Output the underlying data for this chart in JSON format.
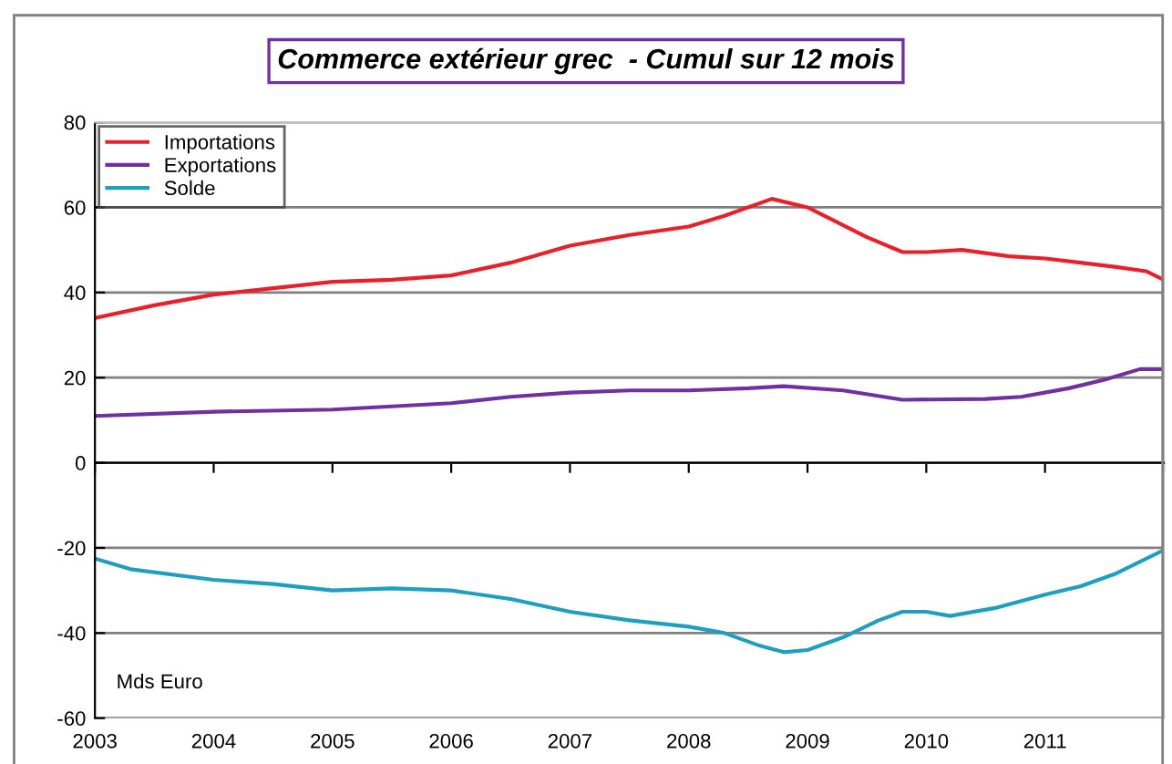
{
  "chart_data": {
    "type": "line",
    "title": "Commerce extérieur grec  - Cumul sur 12 mois",
    "series": [
      {
        "name": "Importations",
        "color": "#e8202a",
        "x": [
          2003,
          2003.5,
          2004,
          2004.5,
          2005,
          2005.5,
          2006,
          2006.5,
          2007,
          2007.5,
          2008,
          2008.3,
          2008.7,
          2009,
          2009.5,
          2009.8,
          2010,
          2010.3,
          2010.7,
          2011,
          2011.3,
          2011.6,
          2011.85,
          2012
        ],
        "values": [
          34,
          37,
          39.5,
          41,
          42.5,
          43,
          44,
          47,
          51,
          53.5,
          55.5,
          58,
          62,
          60,
          53,
          49.5,
          49.5,
          50,
          48.5,
          48,
          47,
          46,
          45,
          43
        ]
      },
      {
        "name": "Exportations",
        "color": "#7030a0",
        "x": [
          2003,
          2004,
          2005,
          2006,
          2006.5,
          2007,
          2007.5,
          2008,
          2008.5,
          2008.8,
          2009.3,
          2009.8,
          2010.5,
          2010.8,
          2011.2,
          2011.5,
          2011.8,
          2012
        ],
        "values": [
          11,
          12,
          12.5,
          14,
          15.5,
          16.5,
          17,
          17,
          17.5,
          18,
          17,
          14.8,
          15,
          15.5,
          17.5,
          19.5,
          22,
          22
        ]
      },
      {
        "name": "Solde",
        "color": "#1f9fbf",
        "x": [
          2003,
          2003.3,
          2004,
          2004.5,
          2005,
          2005.5,
          2006,
          2006.5,
          2007,
          2007.5,
          2008,
          2008.3,
          2008.6,
          2008.8,
          2009,
          2009.3,
          2009.6,
          2009.8,
          2010,
          2010.2,
          2010.6,
          2011,
          2011.3,
          2011.6,
          2012
        ],
        "values": [
          -22.5,
          -25,
          -27.5,
          -28.5,
          -30,
          -29.5,
          -30,
          -32,
          -35,
          -37,
          -38.5,
          -40,
          -43,
          -44.5,
          -44,
          -41,
          -37,
          -35,
          -35,
          -36,
          -34,
          -31,
          -29,
          -26,
          -20.5
        ]
      }
    ],
    "xlim": [
      2003,
      2012
    ],
    "xticks": [
      2003,
      2004,
      2005,
      2006,
      2007,
      2008,
      2009,
      2010,
      2011,
      {
        "value": 2012,
        "label": null
      }
    ],
    "ylim": [
      -60,
      80
    ],
    "yticks": [
      -60,
      -40,
      -20,
      0,
      20,
      40,
      60,
      80
    ],
    "grid": "y",
    "legend": "top left",
    "annotations": [
      "Mds Euro"
    ]
  }
}
